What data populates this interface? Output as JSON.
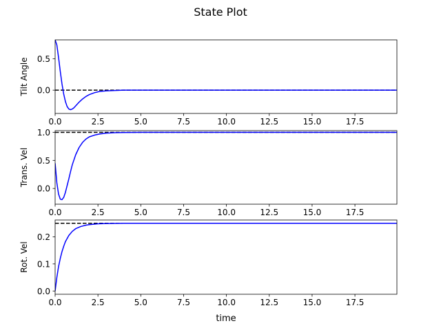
{
  "title": "State Plot",
  "xlabel": "time",
  "colors": {
    "trajectory": "#0000ff",
    "reference": "#000000"
  },
  "chart_data": [
    {
      "type": "line",
      "ylabel": "Tilt Angle",
      "xlim": [
        0,
        19.95
      ],
      "ylim": [
        -0.37,
        0.8
      ],
      "xticks": [
        "0.0",
        "2.5",
        "5.0",
        "7.5",
        "10.0",
        "12.5",
        "15.0",
        "17.5"
      ],
      "yticks": [
        "0.0",
        "0.5"
      ],
      "reference": 0.0,
      "series": [
        {
          "x": [
            0,
            0.1,
            0.2,
            0.3,
            0.4,
            0.5,
            0.6,
            0.7,
            0.8,
            0.9,
            1.0,
            1.1,
            1.2,
            1.4,
            1.6,
            1.8,
            2.0,
            2.3,
            2.6,
            3.0,
            3.5,
            4.0,
            5.0,
            7.0,
            10.0,
            15.0,
            19.95
          ],
          "y": [
            0.8,
            0.72,
            0.52,
            0.3,
            0.1,
            -0.06,
            -0.18,
            -0.26,
            -0.3,
            -0.31,
            -0.3,
            -0.28,
            -0.25,
            -0.19,
            -0.14,
            -0.1,
            -0.07,
            -0.04,
            -0.02,
            -0.01,
            -0.005,
            0,
            0,
            0,
            0,
            0,
            0
          ]
        }
      ]
    },
    {
      "type": "line",
      "ylabel": "Trans. Vel",
      "xlim": [
        0,
        19.95
      ],
      "ylim": [
        -0.28,
        1.03
      ],
      "xticks": [
        "0.0",
        "2.5",
        "5.0",
        "7.5",
        "10.0",
        "12.5",
        "15.0",
        "17.5"
      ],
      "yticks": [
        "0.0",
        "0.5",
        "1.0"
      ],
      "reference": 1.0,
      "series": [
        {
          "x": [
            0,
            0.1,
            0.2,
            0.3,
            0.4,
            0.5,
            0.6,
            0.7,
            0.8,
            0.9,
            1.0,
            1.2,
            1.4,
            1.6,
            1.8,
            2.0,
            2.3,
            2.6,
            3.0,
            3.5,
            4.0,
            5.0,
            7.0,
            10.0,
            15.0,
            19.95
          ],
          "y": [
            0.45,
            0.1,
            -0.1,
            -0.19,
            -0.2,
            -0.16,
            -0.07,
            0.05,
            0.17,
            0.3,
            0.42,
            0.6,
            0.73,
            0.82,
            0.88,
            0.92,
            0.95,
            0.97,
            0.985,
            0.993,
            0.997,
            1.0,
            1.0,
            1.0,
            1.0,
            1.0
          ]
        }
      ]
    },
    {
      "type": "line",
      "ylabel": "Rot. Vel",
      "xlim": [
        0,
        19.95
      ],
      "ylim": [
        -0.012,
        0.262
      ],
      "xticks": [
        "0.0",
        "2.5",
        "5.0",
        "7.5",
        "10.0",
        "12.5",
        "15.0",
        "17.5"
      ],
      "yticks": [
        "0.0",
        "0.1",
        "0.2"
      ],
      "reference": 0.25,
      "series": [
        {
          "x": [
            0,
            0.1,
            0.2,
            0.3,
            0.4,
            0.5,
            0.6,
            0.8,
            1.0,
            1.2,
            1.5,
            1.8,
            2.0,
            2.5,
            3.0,
            4.0,
            5.0,
            7.0,
            10.0,
            15.0,
            19.95
          ],
          "y": [
            0.0,
            0.05,
            0.09,
            0.12,
            0.145,
            0.165,
            0.182,
            0.205,
            0.22,
            0.23,
            0.238,
            0.243,
            0.245,
            0.248,
            0.249,
            0.25,
            0.25,
            0.25,
            0.25,
            0.25,
            0.25
          ]
        }
      ]
    }
  ]
}
